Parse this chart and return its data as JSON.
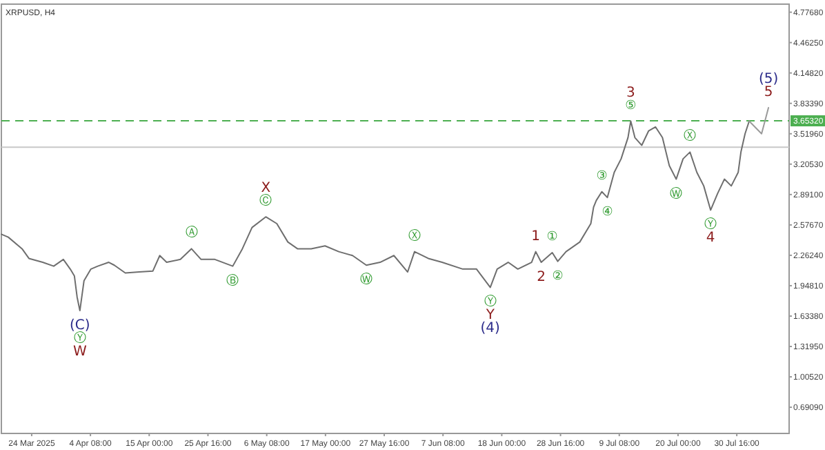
{
  "chart_data": {
    "type": "line",
    "title": "XRPUSD, H4",
    "series": [
      {
        "color": "#6e6e6e",
        "x": [
          "2025-03-19T04:00",
          "2025-03-20T10:00",
          "2025-03-22T22:00",
          "2025-03-24T04:00",
          "2025-03-26T16:00",
          "2025-03-28T16:00",
          "2025-03-30T10:00",
          "2025-03-31T16:00",
          "2025-04-01T10:00",
          "2025-04-01T22:00",
          "2025-04-02T10:00",
          "2025-04-03T04:00",
          "2025-04-04T10:00",
          "2025-04-05T16:00",
          "2025-04-07T16:00",
          "2025-04-08T16:00",
          "2025-04-10T16:00",
          "2025-04-13T04:00",
          "2025-04-15T16:00",
          "2025-04-16T22:00",
          "2025-04-18T04:00",
          "2025-04-20T16:00",
          "2025-04-22T16:00",
          "2025-04-24T10:00",
          "2025-04-26T22:00",
          "2025-04-30T04:00",
          "2025-05-01T22:00",
          "2025-05-03T16:00",
          "2025-05-06T04:00",
          "2025-05-08T04:00",
          "2025-05-10T04:00",
          "2025-05-11T22:00",
          "2025-05-14T10:00",
          "2025-05-16T22:00",
          "2025-05-19T10:00",
          "2025-05-21T22:00",
          "2025-05-24T10:00",
          "2025-05-26T22:00",
          "2025-05-29T10:00",
          "2025-05-31T22:00",
          "2025-06-02T04:00",
          "2025-06-04T16:00",
          "2025-06-07T04:00",
          "2025-06-10T22:00",
          "2025-06-13T10:00",
          "2025-06-15T22:00",
          "2025-06-17T04:00",
          "2025-06-19T04:00",
          "2025-06-20T22:00",
          "2025-06-23T10:00",
          "2025-06-24T04:00",
          "2025-06-25T04:00",
          "2025-06-27T04:00",
          "2025-06-28T04:00",
          "2025-06-29T16:00",
          "2025-07-02T04:00",
          "2025-07-04T04:00",
          "2025-07-04T16:00",
          "2025-07-05T04:00",
          "2025-07-06T04:00",
          "2025-07-07T04:00",
          "2025-07-08T10:00",
          "2025-07-09T16:00",
          "2025-07-10T22:00",
          "2025-07-11T10:00",
          "2025-07-12T04:00",
          "2025-07-13T10:00",
          "2025-07-14T16:00",
          "2025-07-15T22:00",
          "2025-07-17T04:00",
          "2025-07-18T10:00",
          "2025-07-19T16:00",
          "2025-07-20T22:00",
          "2025-07-22T04:00",
          "2025-07-23T10:00",
          "2025-07-24T16:00",
          "2025-07-25T22:00",
          "2025-07-27T04:00",
          "2025-07-28T10:00",
          "2025-07-29T16:00",
          "2025-07-30T22:00",
          "2025-07-31T10:00",
          "2025-08-01T04:00",
          "2025-08-01T22:00"
        ],
        "values": [
          2.48,
          2.45,
          2.33,
          2.23,
          2.19,
          2.15,
          2.22,
          2.12,
          2.05,
          1.83,
          1.69,
          2.0,
          2.12,
          2.15,
          2.19,
          2.16,
          2.08,
          2.09,
          2.1,
          2.26,
          2.19,
          2.22,
          2.33,
          2.22,
          2.22,
          2.15,
          2.33,
          2.55,
          2.66,
          2.59,
          2.4,
          2.33,
          2.33,
          2.36,
          2.3,
          2.26,
          2.16,
          2.19,
          2.26,
          2.09,
          2.3,
          2.23,
          2.19,
          2.12,
          2.12,
          1.93,
          2.12,
          2.19,
          2.12,
          2.19,
          2.3,
          2.19,
          2.29,
          2.2,
          2.3,
          2.4,
          2.59,
          2.76,
          2.83,
          2.92,
          2.86,
          3.12,
          3.26,
          3.48,
          3.65,
          3.48,
          3.4,
          3.55,
          3.59,
          3.48,
          3.19,
          3.05,
          3.26,
          3.33,
          3.12,
          2.98,
          2.73,
          2.9,
          3.05,
          2.98,
          3.12,
          3.33,
          3.52,
          3.65
        ]
      },
      {
        "color": "#9a9a9a",
        "x": [
          "2025-08-01T22:00",
          "2025-08-04T04:00",
          "2025-08-05T10:00"
        ],
        "values": [
          3.65,
          3.52,
          3.79
        ]
      }
    ],
    "xlim": [
      "2025-03-19T04:00",
      "2025-08-09T04:00"
    ],
    "xticks": [
      {
        "value": "2025-03-24T16:00",
        "label": "24 Mar 2025"
      },
      {
        "value": "2025-04-04T08:00",
        "label": "4 Apr 08:00"
      },
      {
        "value": "2025-04-15T00:00",
        "label": "15 Apr 00:00"
      },
      {
        "value": "2025-04-25T16:00",
        "label": "25 Apr 16:00"
      },
      {
        "value": "2025-05-06T08:00",
        "label": "6 May 08:00"
      },
      {
        "value": "2025-05-17T00:00",
        "label": "17 May 00:00"
      },
      {
        "value": "2025-05-27T16:00",
        "label": "27 May 16:00"
      },
      {
        "value": "2025-06-07T08:00",
        "label": "7 Jun 08:00"
      },
      {
        "value": "2025-06-18T00:00",
        "label": "18 Jun 00:00"
      },
      {
        "value": "2025-06-28T16:00",
        "label": "28 Jun 16:00"
      },
      {
        "value": "2025-07-09T08:00",
        "label": "9 Jul 08:00"
      },
      {
        "value": "2025-07-20T00:00",
        "label": "20 Jul 00:00"
      },
      {
        "value": "2025-07-30T16:00",
        "label": "30 Jul 16:00"
      }
    ],
    "ylim": [
      0.42,
      4.86
    ],
    "yticks": [
      {
        "value": 0.6909,
        "label": "0.69090"
      },
      {
        "value": 1.0052,
        "label": "1.00520"
      },
      {
        "value": 1.3195,
        "label": "1.31950"
      },
      {
        "value": 1.6338,
        "label": "1.63380"
      },
      {
        "value": 1.9481,
        "label": "1.94810"
      },
      {
        "value": 2.2624,
        "label": "2.26240"
      },
      {
        "value": 2.5767,
        "label": "2.57670"
      },
      {
        "value": 2.891,
        "label": "2.89100"
      },
      {
        "value": 3.2053,
        "label": "3.20530"
      },
      {
        "value": 3.5196,
        "label": "3.51960"
      },
      {
        "value": 3.8339,
        "label": "3.83390"
      },
      {
        "value": 4.1482,
        "label": "4.14820"
      },
      {
        "value": 4.4625,
        "label": "4.46250"
      },
      {
        "value": 4.7768,
        "label": "4.77680"
      }
    ],
    "ref_lines": [
      {
        "axis": "y",
        "value": 3.6532,
        "label": "3.65320",
        "color": "#4caf50",
        "line_style": "dashed"
      },
      {
        "axis": "y",
        "value": 3.38,
        "color": "#c8c8c8",
        "line_style": "solid"
      }
    ],
    "annotations": [
      {
        "text": "(C)",
        "x": "2025-04-02T10:00",
        "y": 1.69
      },
      {
        "text": "Ⓨ",
        "x": "2025-04-02T10:00",
        "y": 1.69
      },
      {
        "text": "W",
        "x": "2025-04-02T10:00",
        "y": 1.69
      },
      {
        "text": "Ⓐ",
        "x": "2025-04-22T16:00",
        "y": 2.33
      },
      {
        "text": "Ⓑ",
        "x": "2025-04-30T04:00",
        "y": 2.15
      },
      {
        "text": "Ⓒ",
        "x": "2025-05-06T04:00",
        "y": 2.66
      },
      {
        "text": "X",
        "x": "2025-05-06T04:00",
        "y": 2.66
      },
      {
        "text": "Ⓦ",
        "x": "2025-05-24T10:00",
        "y": 2.16
      },
      {
        "text": "Ⓧ",
        "x": "2025-06-02T04:00",
        "y": 2.3
      },
      {
        "text": "Ⓨ",
        "x": "2025-06-15T22:00",
        "y": 1.93
      },
      {
        "text": "Y",
        "x": "2025-06-15T22:00",
        "y": 1.93
      },
      {
        "text": "(4)",
        "x": "2025-06-15T22:00",
        "y": 1.93
      },
      {
        "text": "1",
        "x": "2025-06-24T04:00",
        "y": 2.3
      },
      {
        "text": "2",
        "x": "2025-06-25T04:00",
        "y": 2.19
      },
      {
        "text": "①",
        "x": "2025-06-27T04:00",
        "y": 2.29
      },
      {
        "text": "②",
        "x": "2025-06-28T04:00",
        "y": 2.2
      },
      {
        "text": "③",
        "x": "2025-07-06T04:00",
        "y": 2.92
      },
      {
        "text": "④",
        "x": "2025-07-07T04:00",
        "y": 2.86
      },
      {
        "text": "⑤",
        "x": "2025-07-11T10:00",
        "y": 3.65
      },
      {
        "text": "3",
        "x": "2025-07-11T10:00",
        "y": 3.65
      },
      {
        "text": "Ⓦ",
        "x": "2025-07-19T16:00",
        "y": 3.05
      },
      {
        "text": "Ⓧ",
        "x": "2025-07-22T04:00",
        "y": 3.33
      },
      {
        "text": "Ⓨ",
        "x": "2025-07-25T22:00",
        "y": 2.73
      },
      {
        "text": "4",
        "x": "2025-07-25T22:00",
        "y": 2.73
      },
      {
        "text": "5",
        "x": "2025-08-05T10:00",
        "y": 3.79
      },
      {
        "text": "(5)",
        "x": "2025-08-05T10:00",
        "y": 3.79
      }
    ],
    "grid": false
  }
}
